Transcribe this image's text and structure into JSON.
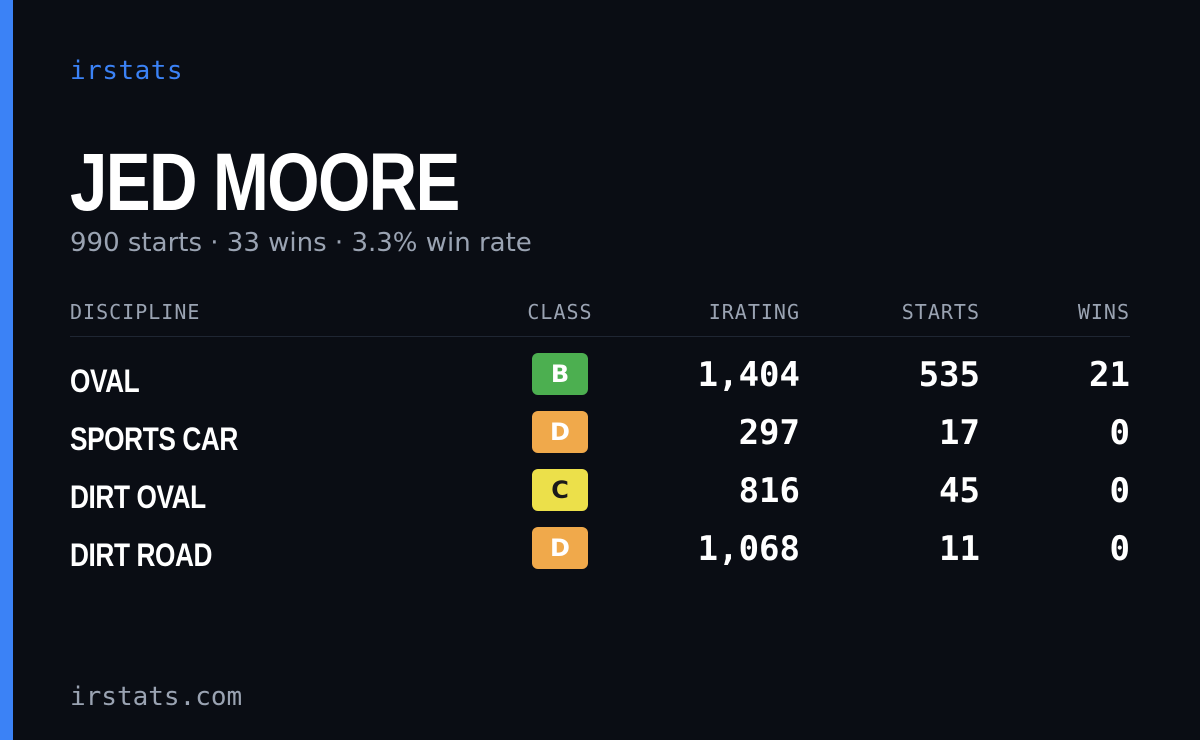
{
  "brand": "irstats",
  "player": {
    "name": "JED MOORE",
    "summary": "990 starts · 33 wins · 3.3% win rate"
  },
  "table": {
    "headers": {
      "discipline": "DISCIPLINE",
      "class": "CLASS",
      "irating": "IRATING",
      "starts": "STARTS",
      "wins": "WINS"
    },
    "rows": [
      {
        "discipline": "OVAL",
        "class": "B",
        "class_color": "#4caf50",
        "irating": "1,404",
        "starts": "535",
        "wins": "21"
      },
      {
        "discipline": "SPORTS CAR",
        "class": "D",
        "class_color": "#f0a94b",
        "irating": "297",
        "starts": "17",
        "wins": "0"
      },
      {
        "discipline": "DIRT OVAL",
        "class": "C",
        "class_color": "#ece04a",
        "irating": "816",
        "starts": "45",
        "wins": "0"
      },
      {
        "discipline": "DIRT ROAD",
        "class": "D",
        "class_color": "#f0a94b",
        "irating": "1,068",
        "starts": "11",
        "wins": "0"
      }
    ]
  },
  "footer": "irstats.com",
  "colors": {
    "accent": "#3b82f6",
    "background": "#0a0d14",
    "muted_text": "#9aa3b2"
  }
}
